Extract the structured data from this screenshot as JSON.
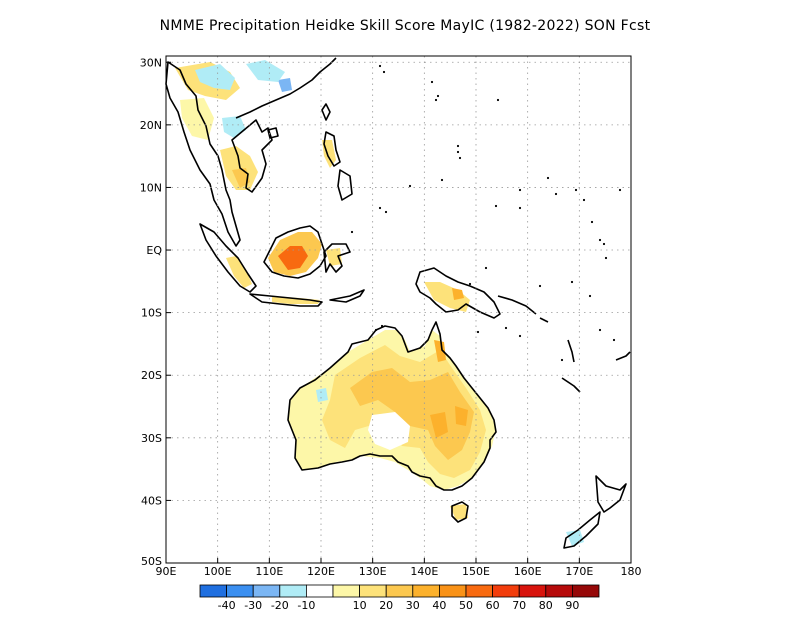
{
  "title": "NMME   Precipitation Heidke Skill Score MayIC (1982-2022) SON Fcst",
  "map": {
    "lon_range": [
      90,
      180
    ],
    "lat_range": [
      -50,
      31
    ],
    "lat_ticks": [
      {
        "value": 30,
        "label": "30N"
      },
      {
        "value": 20,
        "label": "20N"
      },
      {
        "value": 10,
        "label": "10N"
      },
      {
        "value": 0,
        "label": "EQ"
      },
      {
        "value": -10,
        "label": "10S"
      },
      {
        "value": -20,
        "label": "20S"
      },
      {
        "value": -30,
        "label": "30S"
      },
      {
        "value": -40,
        "label": "40S"
      },
      {
        "value": -50,
        "label": "50S"
      }
    ],
    "lon_ticks": [
      {
        "value": 90,
        "label": "90E"
      },
      {
        "value": 100,
        "label": "100E"
      },
      {
        "value": 110,
        "label": "110E"
      },
      {
        "value": 120,
        "label": "120E"
      },
      {
        "value": 130,
        "label": "130E"
      },
      {
        "value": 140,
        "label": "140E"
      },
      {
        "value": 150,
        "label": "150E"
      },
      {
        "value": 160,
        "label": "160E"
      },
      {
        "value": 170,
        "label": "170E"
      },
      {
        "value": 180,
        "label": "180"
      }
    ],
    "grid": "dotted",
    "coast_color": "#000000"
  },
  "colorbar": {
    "colors": [
      "#1f6fe0",
      "#3b8ff0",
      "#7bb6f4",
      "#b0ecf6",
      "#ffffff",
      "#fdf7a8",
      "#fde27a",
      "#fcc84f",
      "#fcb12c",
      "#f99217",
      "#f86a10",
      "#f23d0c",
      "#d8140d",
      "#b60a0a",
      "#960808"
    ],
    "labels": [
      "-40",
      "-30",
      "-20",
      "-10",
      "10",
      "20",
      "30",
      "40",
      "50",
      "60",
      "70",
      "80",
      "90"
    ]
  },
  "shading": [
    {
      "level": "10",
      "color": "#fdf7a8"
    },
    {
      "level": "20",
      "color": "#fde27a"
    },
    {
      "level": "30",
      "color": "#fcc84f"
    },
    {
      "level": "40",
      "color": "#fcb12c"
    },
    {
      "level": "50",
      "color": "#f99217"
    },
    {
      "level": "60",
      "color": "#f86a10"
    },
    {
      "level": "-10",
      "color": "#b0ecf6"
    },
    {
      "level": "-20",
      "color": "#7bb6f4"
    }
  ]
}
